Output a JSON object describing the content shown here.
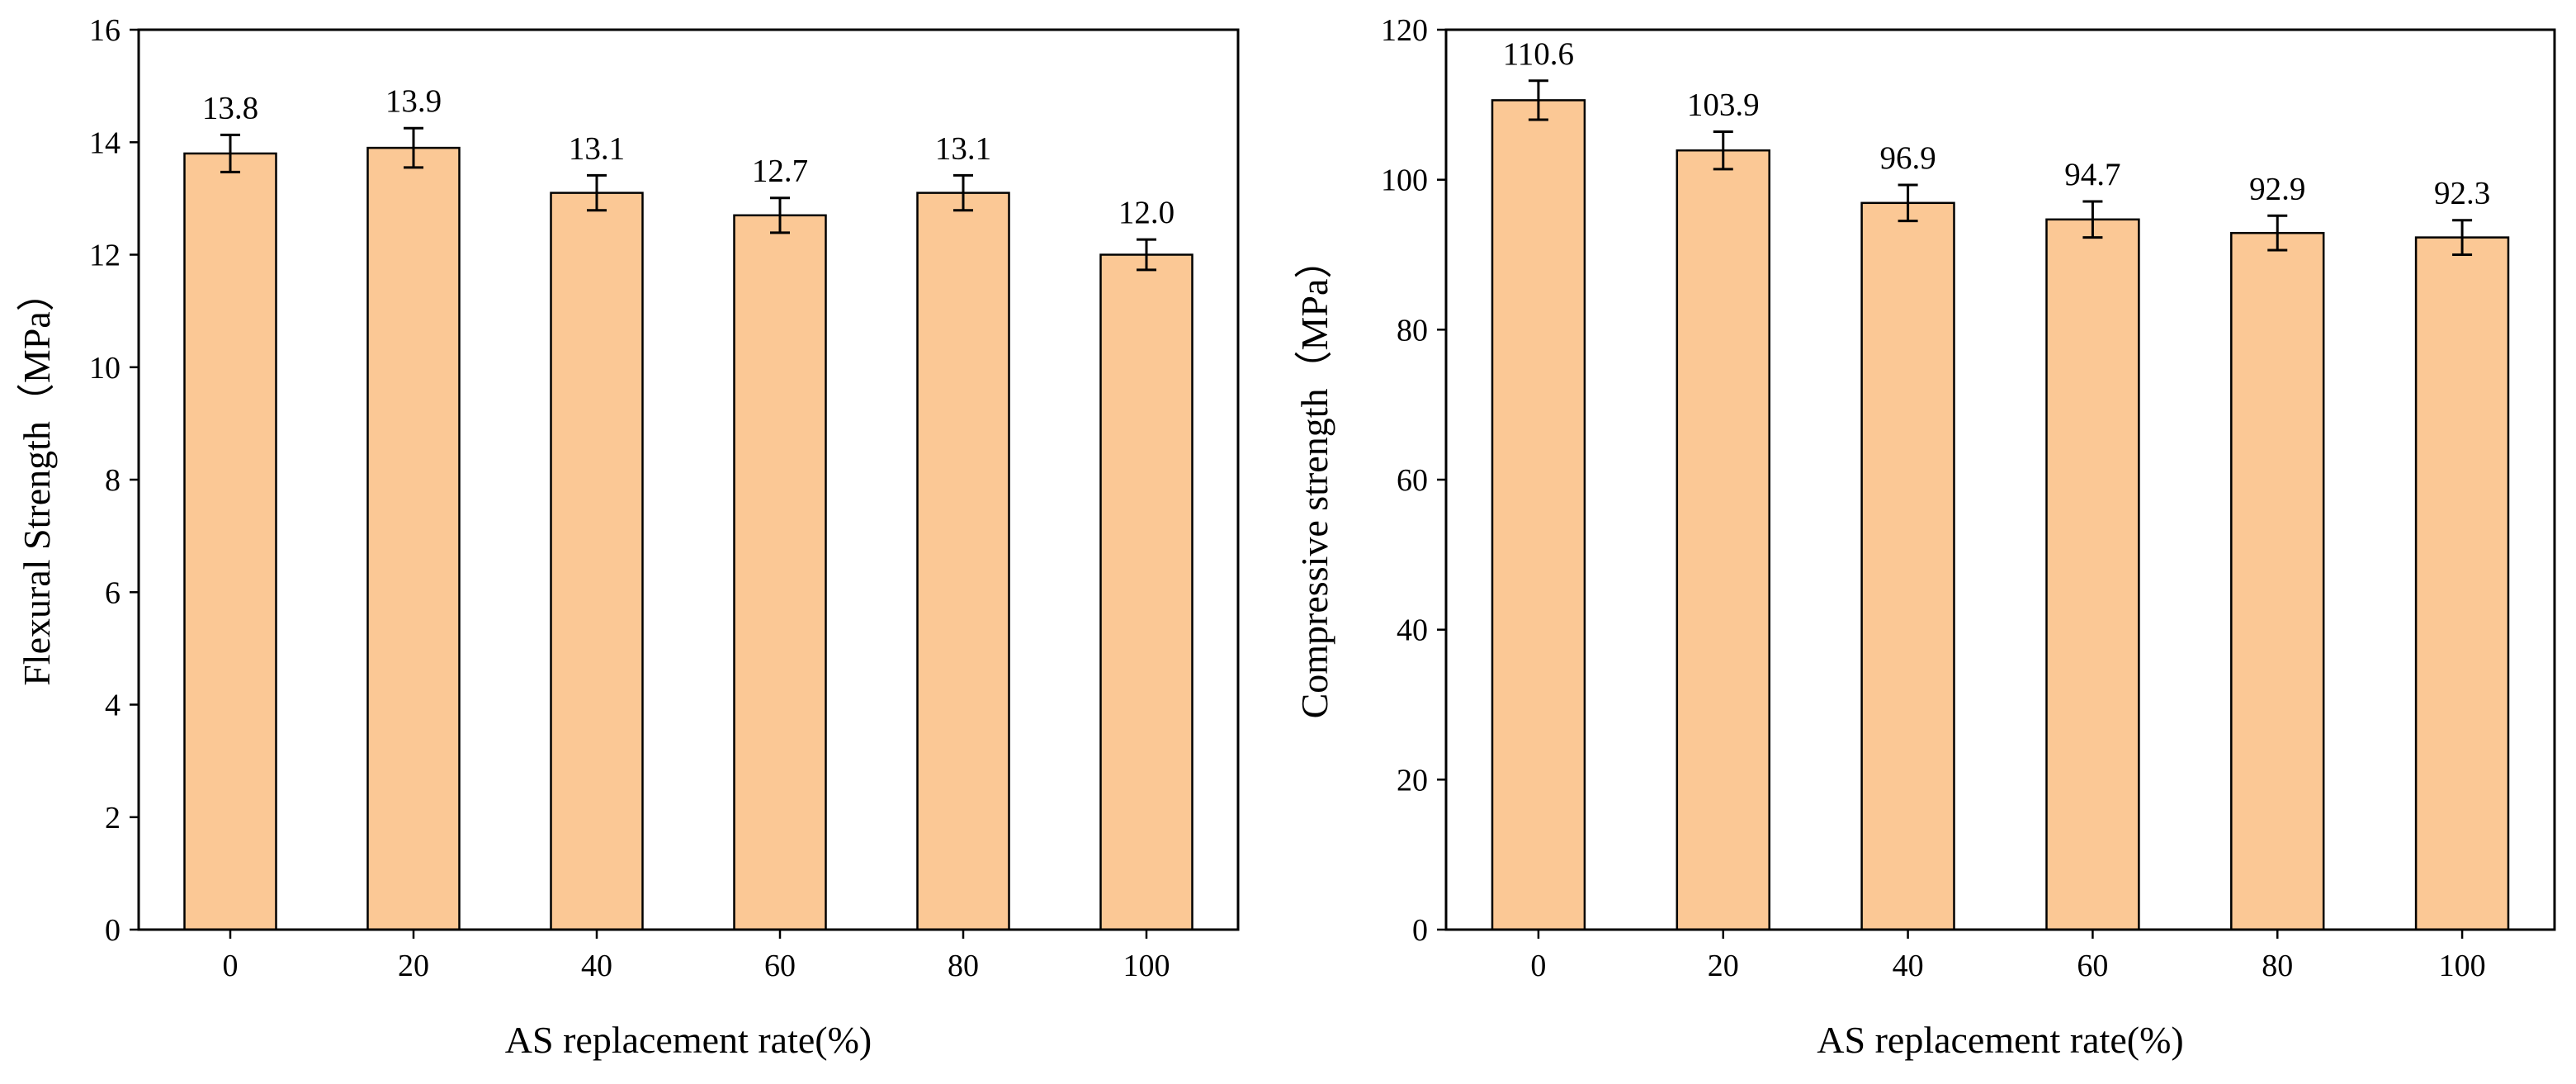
{
  "colors": {
    "bar_fill": "#FBC895",
    "bar_stroke": "#000000",
    "axis": "#000000",
    "background": "#FFFFFF"
  },
  "chart_data": [
    {
      "type": "bar",
      "title": "",
      "xlabel": "AS replacement rate(%)",
      "ylabel": "Flexural Strength（MPa）",
      "categories": [
        "0",
        "20",
        "40",
        "60",
        "80",
        "100"
      ],
      "values": [
        13.8,
        13.9,
        13.1,
        12.7,
        13.1,
        12.0
      ],
      "value_labels": [
        "13.8",
        "13.9",
        "13.1",
        "12.7",
        "13.1",
        "12.0"
      ],
      "error": [
        0.33,
        0.35,
        0.31,
        0.31,
        0.31,
        0.27
      ],
      "ylim": [
        0,
        16
      ],
      "yticks": [
        "0",
        "2",
        "4",
        "6",
        "8",
        "10",
        "12",
        "14",
        "16"
      ],
      "grid": false,
      "legend": "none"
    },
    {
      "type": "bar",
      "title": "",
      "xlabel": "AS replacement rate(%)",
      "ylabel": "Compressive strength（MPa）",
      "categories": [
        "0",
        "20",
        "40",
        "60",
        "80",
        "100"
      ],
      "values": [
        110.6,
        103.9,
        96.9,
        94.7,
        92.9,
        92.3
      ],
      "value_labels": [
        "110.6",
        "103.9",
        "96.9",
        "94.7",
        "92.9",
        "92.3"
      ],
      "error": [
        2.6,
        2.5,
        2.4,
        2.4,
        2.3,
        2.3
      ],
      "ylim": [
        0,
        120
      ],
      "yticks": [
        "0",
        "20",
        "40",
        "60",
        "80",
        "100",
        "120"
      ],
      "grid": false,
      "legend": "none"
    }
  ]
}
